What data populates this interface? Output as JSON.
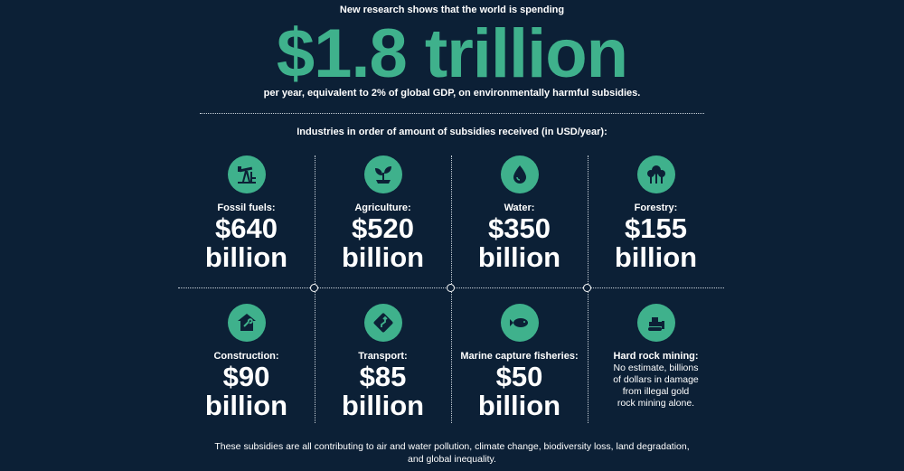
{
  "intro": "New research shows that the world is spending",
  "headline": "$1.8 trillion",
  "subline": "per year, equivalent to 2% of global GDP, on environmentally harmful subsidies.",
  "industries_heading": "Industries in order of amount of subsidies received (in USD/year):",
  "accent_color": "#3fb18c",
  "background_color": "#0c2036",
  "industries": [
    {
      "icon": "oil-pump-icon",
      "label": "Fossil fuels:",
      "amount": "$640",
      "unit": "billion"
    },
    {
      "icon": "sprout-icon",
      "label": "Agriculture:",
      "amount": "$520",
      "unit": "billion"
    },
    {
      "icon": "water-drop-icon",
      "label": "Water:",
      "amount": "$350",
      "unit": "billion"
    },
    {
      "icon": "trees-icon",
      "label": "Forestry:",
      "amount": "$155",
      "unit": "billion"
    },
    {
      "icon": "house-wrench-icon",
      "label": "Construction:",
      "amount": "$90",
      "unit": "billion"
    },
    {
      "icon": "road-sign-icon",
      "label": "Transport:",
      "amount": "$85",
      "unit": "billion"
    },
    {
      "icon": "fish-icon",
      "label": "Marine capture fisheries:",
      "amount": "$50",
      "unit": "billion"
    },
    {
      "icon": "bulldozer-icon",
      "label": "Hard rock mining:",
      "note_lines": [
        "No estimate, billions",
        "of dollars in damage",
        "from illegal gold",
        "rock mining alone."
      ]
    }
  ],
  "footer_lines": [
    "These subsidies are all contributing to air and water pollution, climate change, biodiversity loss, land degradation,",
    "and global inequality."
  ]
}
